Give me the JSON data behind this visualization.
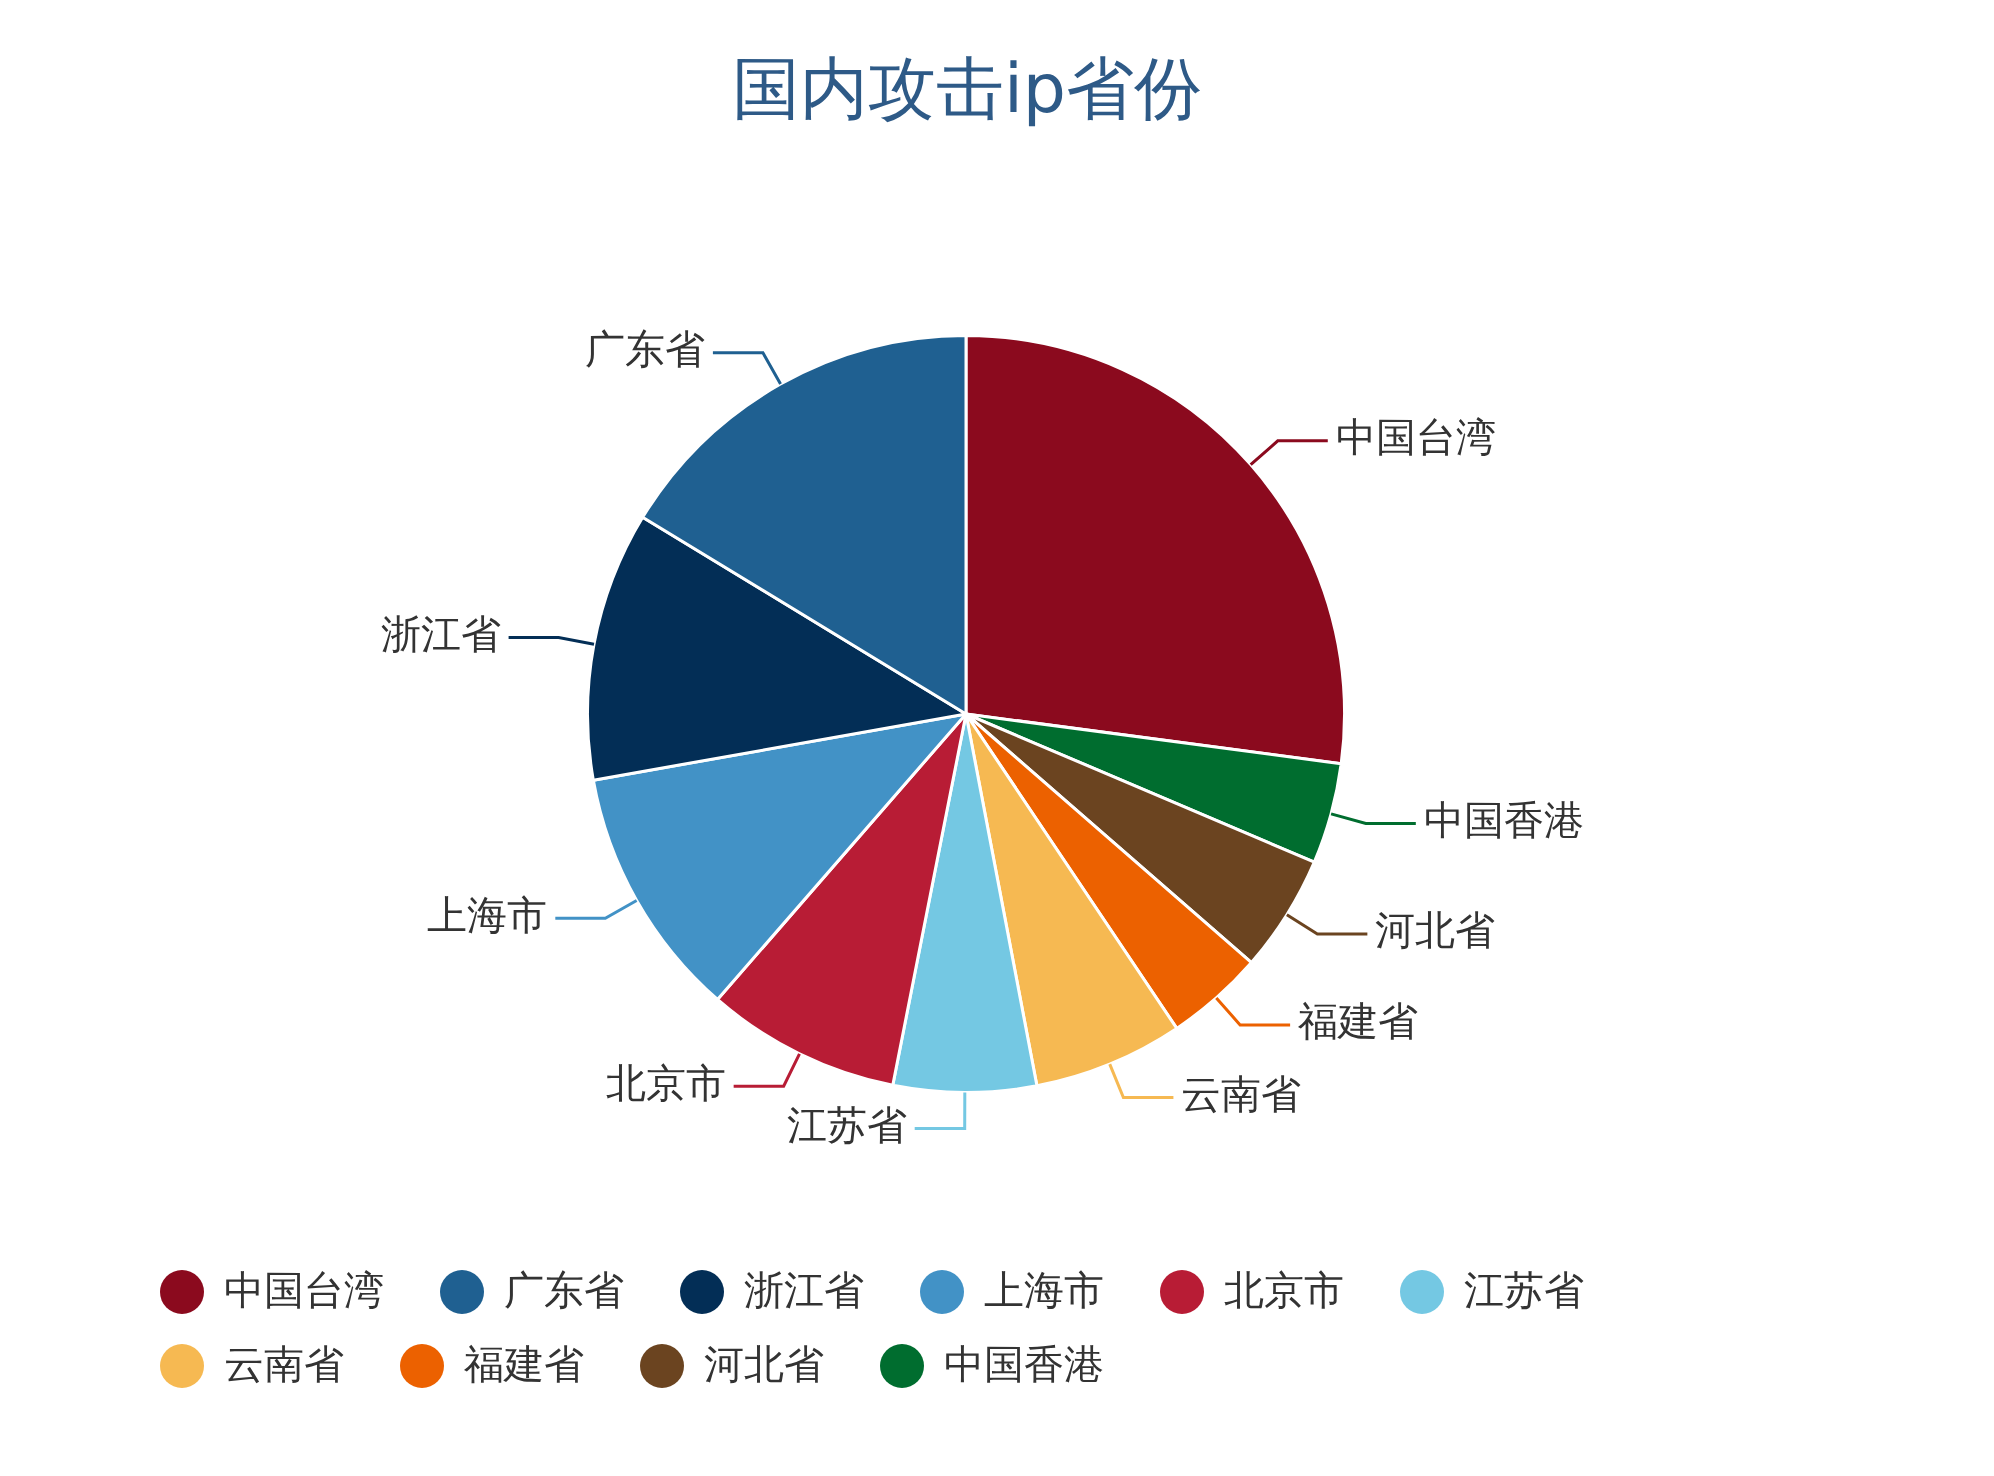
{
  "chart_data": {
    "type": "pie",
    "title": "国内攻击ip省份",
    "categories": [
      "中国台湾",
      "广东省",
      "浙江省",
      "上海市",
      "北京市",
      "江苏省",
      "云南省",
      "福建省",
      "河北省",
      "中国香港"
    ],
    "values": [
      27.1,
      16.3,
      11.5,
      10.8,
      8.3,
      6.1,
      6.4,
      4.2,
      5.0,
      4.3
    ],
    "colors": [
      "#8b0a1e",
      "#1f6091",
      "#032e56",
      "#4292c6",
      "#b81c35",
      "#74c8e3",
      "#f6b952",
      "#ec6100",
      "#6b4420",
      "#006d2f"
    ],
    "legend": "bottom"
  }
}
